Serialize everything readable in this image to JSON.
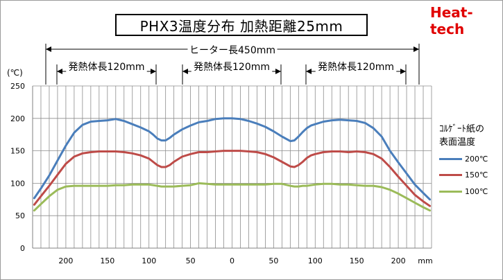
{
  "title": "PHX3温度分布 加熱距離25mm",
  "brand": "Heat-tech",
  "annotations": {
    "heater_length": "ヒーター長450mm",
    "heat_segments": [
      "発熱体長120mm",
      "発熱体長120mm",
      "発熱体長120mm"
    ]
  },
  "legend": {
    "title_line1": "ｺﾙｹﾞｰﾄ紙の",
    "title_line2": "表面温度"
  },
  "chart_data": {
    "type": "line",
    "ylabel": "(℃)",
    "xunit": "mm",
    "ylim": [
      0,
      250
    ],
    "yticks": [
      0,
      50,
      100,
      150,
      200,
      250
    ],
    "xlim": [
      -240,
      240
    ],
    "xticks": [
      -200,
      -150,
      -100,
      -50,
      0,
      50,
      100,
      150,
      200
    ],
    "xtick_labels": [
      "200",
      "150",
      "100",
      "50",
      "0",
      "50",
      "100",
      "150",
      "200"
    ],
    "grid": true,
    "legend_position": "right",
    "series": [
      {
        "name": "200℃",
        "color": "#4a7ebb",
        "x": [
          -238,
          -230,
          -220,
          -210,
          -200,
          -190,
          -180,
          -170,
          -160,
          -150,
          -140,
          -130,
          -120,
          -110,
          -100,
          -95,
          -90,
          -85,
          -80,
          -75,
          -70,
          -60,
          -50,
          -40,
          -30,
          -20,
          -10,
          0,
          10,
          20,
          30,
          40,
          50,
          60,
          70,
          75,
          80,
          85,
          90,
          95,
          100,
          110,
          120,
          130,
          140,
          150,
          160,
          170,
          180,
          190,
          200,
          210,
          220,
          230,
          238
        ],
        "values": [
          77,
          92,
          112,
          135,
          158,
          178,
          190,
          195,
          196,
          197,
          199,
          196,
          191,
          186,
          180,
          175,
          169,
          166,
          166,
          170,
          175,
          183,
          189,
          194,
          196,
          199,
          200,
          200,
          199,
          196,
          192,
          187,
          180,
          172,
          165,
          166,
          172,
          179,
          185,
          189,
          191,
          195,
          197,
          198,
          197,
          196,
          193,
          185,
          172,
          150,
          132,
          115,
          98,
          85,
          75
        ]
      },
      {
        "name": "150℃",
        "color": "#be4b48",
        "x": [
          -238,
          -230,
          -220,
          -210,
          -200,
          -190,
          -180,
          -170,
          -160,
          -150,
          -140,
          -130,
          -120,
          -110,
          -100,
          -95,
          -90,
          -85,
          -80,
          -75,
          -70,
          -60,
          -50,
          -40,
          -30,
          -20,
          -10,
          0,
          10,
          20,
          30,
          40,
          50,
          60,
          70,
          75,
          80,
          85,
          90,
          95,
          100,
          110,
          120,
          130,
          140,
          150,
          160,
          170,
          180,
          190,
          200,
          210,
          220,
          230,
          238
        ],
        "values": [
          67,
          80,
          96,
          113,
          130,
          141,
          146,
          148,
          149,
          149,
          149,
          148,
          146,
          143,
          138,
          133,
          128,
          125,
          125,
          128,
          133,
          141,
          145,
          148,
          148,
          149,
          150,
          150,
          150,
          149,
          148,
          145,
          140,
          133,
          126,
          125,
          128,
          133,
          139,
          143,
          145,
          148,
          149,
          149,
          148,
          149,
          148,
          145,
          138,
          125,
          110,
          96,
          82,
          72,
          65
        ]
      },
      {
        "name": "100℃",
        "color": "#9bbb59",
        "x": [
          -238,
          -230,
          -220,
          -210,
          -200,
          -190,
          -180,
          -170,
          -160,
          -150,
          -140,
          -130,
          -120,
          -110,
          -100,
          -95,
          -90,
          -85,
          -80,
          -75,
          -70,
          -60,
          -50,
          -40,
          -30,
          -20,
          -10,
          0,
          10,
          20,
          30,
          40,
          50,
          60,
          70,
          75,
          80,
          85,
          90,
          95,
          100,
          110,
          120,
          130,
          140,
          150,
          160,
          170,
          180,
          190,
          200,
          210,
          220,
          230,
          238
        ],
        "values": [
          58,
          68,
          80,
          90,
          95,
          96,
          96,
          96,
          96,
          96,
          97,
          97,
          98,
          98,
          98,
          97,
          96,
          95,
          95,
          95,
          95,
          96,
          97,
          100,
          99,
          98,
          98,
          98,
          98,
          98,
          98,
          98,
          99,
          99,
          96,
          95,
          95,
          96,
          96,
          97,
          98,
          99,
          99,
          98,
          98,
          97,
          96,
          96,
          94,
          90,
          84,
          77,
          70,
          63,
          58
        ]
      }
    ]
  }
}
